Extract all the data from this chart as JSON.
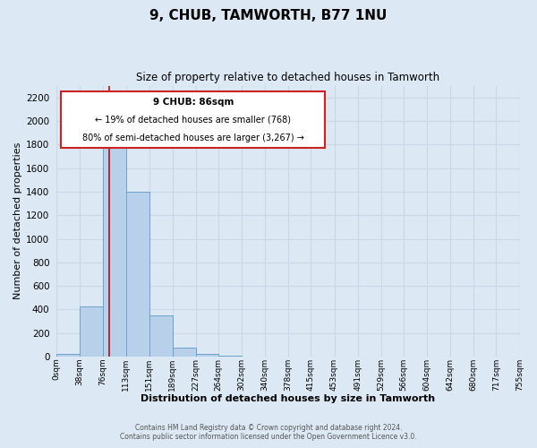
{
  "title": "9, CHUB, TAMWORTH, B77 1NU",
  "subtitle": "Size of property relative to detached houses in Tamworth",
  "xlabel": "Distribution of detached houses by size in Tamworth",
  "ylabel": "Number of detached properties",
  "footer_line1": "Contains HM Land Registry data © Crown copyright and database right 2024.",
  "footer_line2": "Contains public sector information licensed under the Open Government Licence v3.0.",
  "annotation_title": "9 CHUB: 86sqm",
  "annotation_line1": "← 19% of detached houses are smaller (768)",
  "annotation_line2": "80% of semi-detached houses are larger (3,267) →",
  "bar_values": [
    20,
    430,
    1800,
    1400,
    350,
    80,
    25,
    5,
    2,
    0,
    0,
    0,
    0,
    0,
    0,
    0,
    0,
    0,
    0,
    0
  ],
  "bin_edges": [
    0,
    38,
    76,
    113,
    151,
    189,
    227,
    264,
    302,
    340,
    378,
    415,
    453,
    491,
    529,
    566,
    604,
    642,
    680,
    717,
    755
  ],
  "tick_labels": [
    "0sqm",
    "38sqm",
    "76sqm",
    "113sqm",
    "151sqm",
    "189sqm",
    "227sqm",
    "264sqm",
    "302sqm",
    "340sqm",
    "378sqm",
    "415sqm",
    "453sqm",
    "491sqm",
    "529sqm",
    "566sqm",
    "604sqm",
    "642sqm",
    "680sqm",
    "717sqm",
    "755sqm"
  ],
  "bar_color": "#b8d0ea",
  "bar_edge_color": "#6ba3cc",
  "red_line_x": 86,
  "ylim": [
    0,
    2300
  ],
  "yticks": [
    0,
    200,
    400,
    600,
    800,
    1000,
    1200,
    1400,
    1600,
    1800,
    2000,
    2200
  ],
  "annotation_box_color": "#ffffff",
  "annotation_box_edge": "#cc2222",
  "grid_color": "#c8d8e8",
  "background_color": "#dce8f4"
}
